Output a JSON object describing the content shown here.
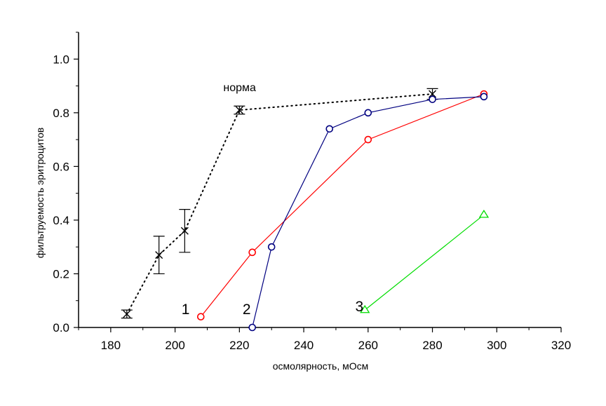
{
  "chart_data": {
    "type": "line",
    "title": "",
    "xlabel": "осмолярность, мОсм",
    "ylabel": "фильтруемость эритроцитов",
    "xlim": [
      170,
      320
    ],
    "ylim": [
      0.0,
      1.1
    ],
    "x_ticks": [
      180,
      200,
      220,
      240,
      260,
      280,
      300,
      320
    ],
    "x_tick_labels": [
      "180",
      "200",
      "220",
      "240",
      "260",
      "280",
      "300",
      "320"
    ],
    "y_ticks": [
      0.0,
      0.2,
      0.4,
      0.6,
      0.8,
      1.0
    ],
    "y_tick_labels": [
      "0.0",
      "0.2",
      "0.4",
      "0.6",
      "0.8",
      "1.0"
    ],
    "grid": false,
    "legend": "none",
    "annotations": [
      {
        "text": "норма",
        "x": 215,
        "y": 0.88
      },
      {
        "text": "1",
        "x": 202,
        "y": 0.05
      },
      {
        "text": "2",
        "x": 221,
        "y": 0.05
      },
      {
        "text": "3",
        "x": 256,
        "y": 0.06
      }
    ],
    "series": [
      {
        "color": "#000000",
        "line": "dotted",
        "marker": "x",
        "points": [
          {
            "x": 185,
            "y": 0.05,
            "err": 0.015
          },
          {
            "x": 195,
            "y": 0.27,
            "err": 0.07
          },
          {
            "x": 203,
            "y": 0.36,
            "err": 0.08
          },
          {
            "x": 220,
            "y": 0.81,
            "err": 0.015
          },
          {
            "x": 280,
            "y": 0.87,
            "err": 0.02
          }
        ]
      },
      {
        "color": "#ff0000",
        "line": "solid",
        "marker": "circle",
        "points": [
          {
            "x": 208,
            "y": 0.04
          },
          {
            "x": 224,
            "y": 0.28
          },
          {
            "x": 260,
            "y": 0.7
          },
          {
            "x": 296,
            "y": 0.87
          }
        ]
      },
      {
        "color": "#000080",
        "line": "solid",
        "marker": "circle",
        "points": [
          {
            "x": 224,
            "y": 0.0
          },
          {
            "x": 230,
            "y": 0.3
          },
          {
            "x": 248,
            "y": 0.74
          },
          {
            "x": 260,
            "y": 0.8
          },
          {
            "x": 280,
            "y": 0.85
          },
          {
            "x": 296,
            "y": 0.86
          }
        ]
      },
      {
        "color": "#00dd00",
        "line": "solid",
        "marker": "triangle",
        "points": [
          {
            "x": 259,
            "y": 0.065
          },
          {
            "x": 296,
            "y": 0.42
          }
        ]
      }
    ]
  }
}
